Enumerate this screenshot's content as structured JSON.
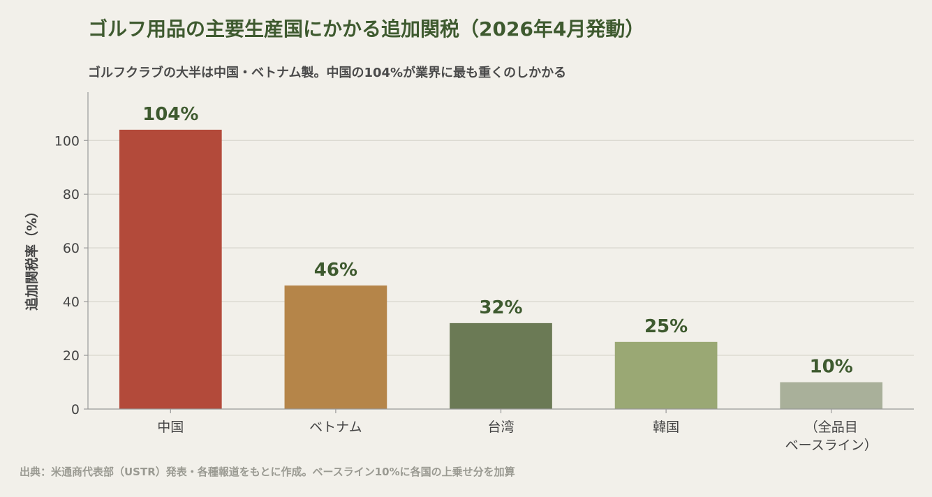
{
  "title": "ゴルフ用品の主要生産国にかかる追加関税（2026年4月発動）",
  "subtitle": "ゴルフクラブの大半は中国・ベトナム製。中国の104%が業界に最も重くのしかかる",
  "source": "出典：米通商代表部（USTR）発表・各種報道をもとに作成。ベースライン10%に各国の上乗せ分を加算",
  "chart_data": {
    "type": "bar",
    "title": "ゴルフ用品の主要生産国にかかる追加関税（2026年4月発動）",
    "ylabel": "追加関税率（%）",
    "xlabel": "",
    "ylim": [
      0,
      118
    ],
    "yticks": [
      0,
      20,
      40,
      60,
      80,
      100
    ],
    "grid": true,
    "categories": [
      [
        "中国"
      ],
      [
        "ベトナム"
      ],
      [
        "台湾"
      ],
      [
        "韓国"
      ],
      [
        "（全品目",
        "ベースライン）"
      ]
    ],
    "values": [
      104,
      46,
      32,
      25,
      10
    ],
    "value_labels": [
      "104%",
      "46%",
      "32%",
      "25%",
      "10%"
    ],
    "colors": [
      "#b34a3a",
      "#b58549",
      "#6b7a55",
      "#9aa874",
      "#a9b09a"
    ]
  }
}
